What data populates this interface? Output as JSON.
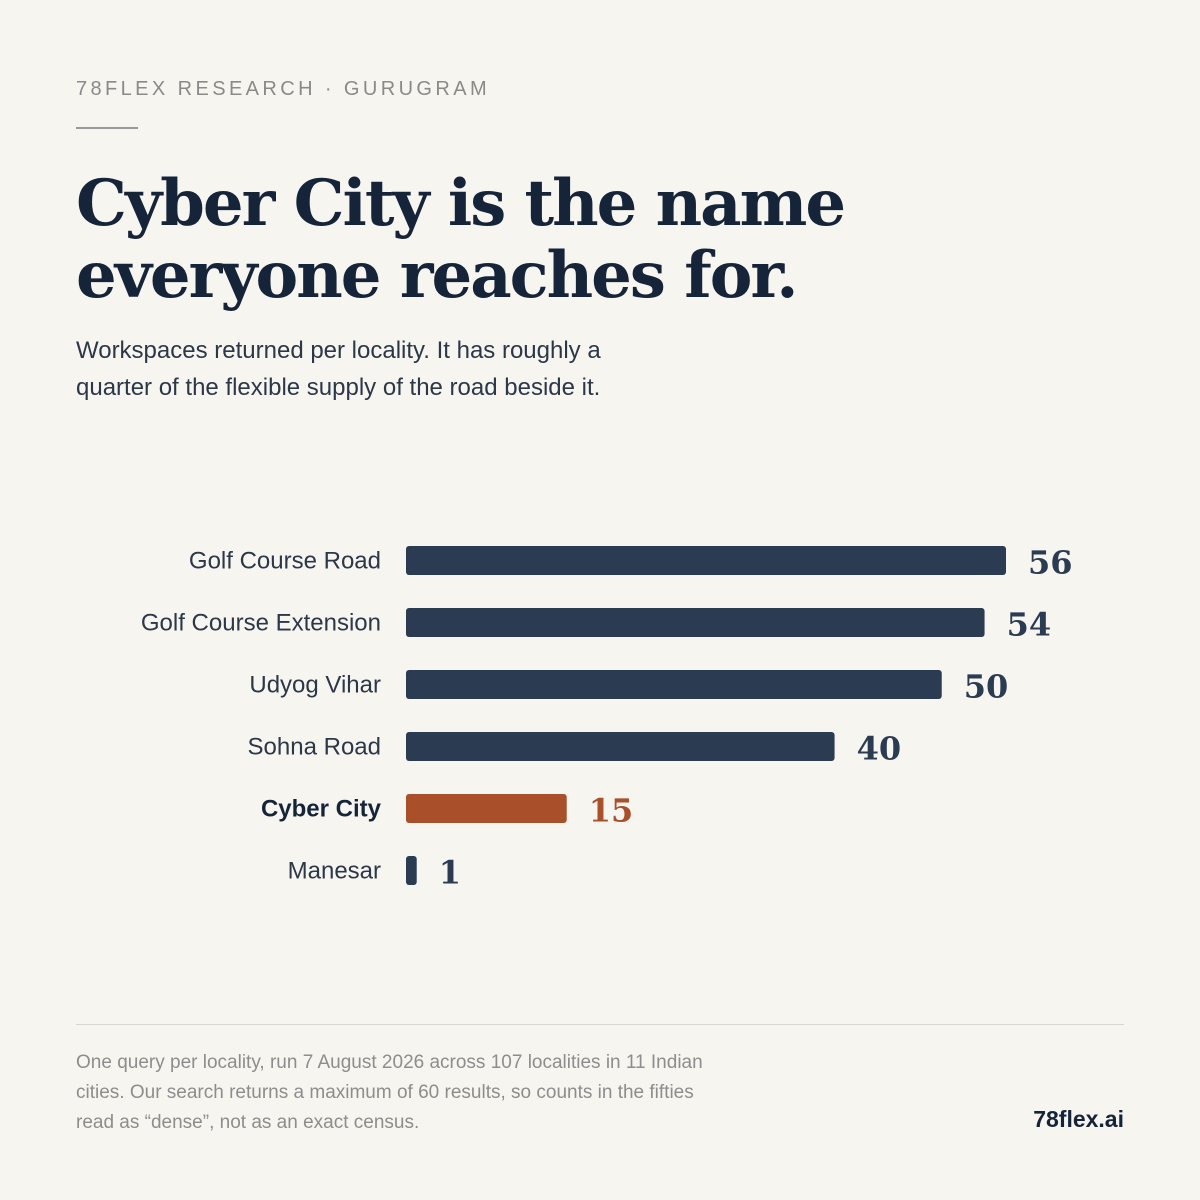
{
  "header": {
    "eyebrow": "78FLEX RESEARCH · GURUGRAM",
    "title_line1": "Cyber City is the name",
    "title_line2": "everyone reaches for.",
    "subtitle_line1": "Workspaces returned per locality. It has roughly a",
    "subtitle_line2": "quarter of the flexible supply of the road beside it."
  },
  "chart_data": {
    "type": "bar",
    "orientation": "horizontal",
    "categories": [
      "Golf Course Road",
      "Golf Course Extension",
      "Udyog Vihar",
      "Sohna Road",
      "Cyber City",
      "Manesar"
    ],
    "values": [
      56,
      54,
      50,
      40,
      15,
      1
    ],
    "highlight": "Cyber City",
    "colors": {
      "default": "#2b3b52",
      "highlight": "#a9502a",
      "label": "#2c3748",
      "highlight_label": "#16243a"
    },
    "xlim": [
      0,
      56
    ],
    "grid": false,
    "title": "",
    "xlabel": "",
    "ylabel": ""
  },
  "footer": {
    "footnote_line1": "One query per locality, run 7 August 2026 across 107 localities in 11 Indian",
    "footnote_line2": "cities. Our search returns a maximum of 60 results, so counts in the fifties",
    "footnote_line3": "read as “dense”, not as an exact census.",
    "brand": "78flex.ai"
  }
}
